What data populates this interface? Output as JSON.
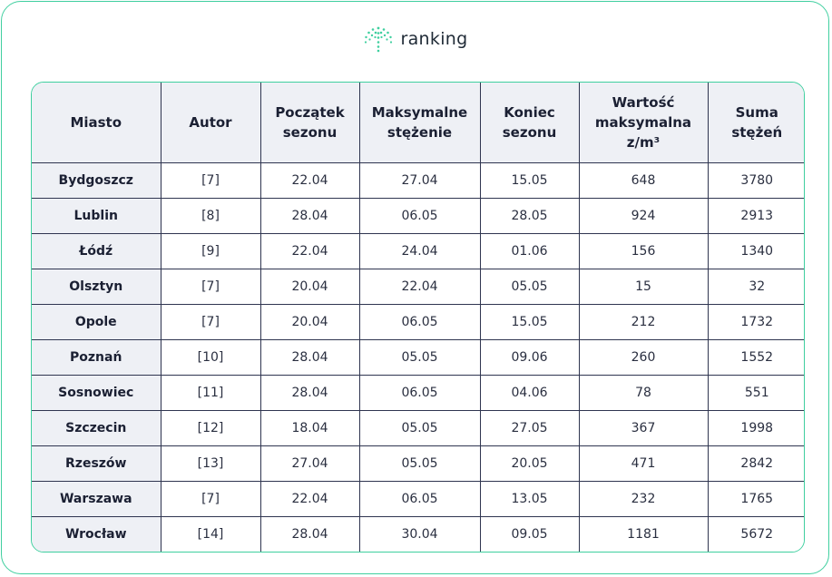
{
  "brand": {
    "name": "ranking",
    "accent_color": "#3fcf9f",
    "icon": "ranking-logo-icon"
  },
  "table": {
    "headers": [
      "Miasto",
      "Autor",
      "Początek sezonu",
      "Maksymalne stężenie",
      "Koniec sezonu",
      "Wartość maksymalna z/m³",
      "Suma stężeń"
    ],
    "rows": [
      [
        "Bydgoszcz",
        "[7]",
        "22.04",
        "27.04",
        "15.05",
        "648",
        "3780"
      ],
      [
        "Lublin",
        "[8]",
        "28.04",
        "06.05",
        "28.05",
        "924",
        "2913"
      ],
      [
        "Łódź",
        "[9]",
        "22.04",
        "24.04",
        "01.06",
        "156",
        "1340"
      ],
      [
        "Olsztyn",
        "[7]",
        "20.04",
        "22.04",
        "05.05",
        "15",
        "32"
      ],
      [
        "Opole",
        "[7]",
        "20.04",
        "06.05",
        "15.05",
        "212",
        "1732"
      ],
      [
        "Poznań",
        "[10]",
        "28.04",
        "05.05",
        "09.06",
        "260",
        "1552"
      ],
      [
        "Sosnowiec",
        "[11]",
        "28.04",
        "06.05",
        "04.06",
        "78",
        "551"
      ],
      [
        "Szczecin",
        "[12]",
        "18.04",
        "05.05",
        "27.05",
        "367",
        "1998"
      ],
      [
        "Rzeszów",
        "[13]",
        "27.04",
        "05.05",
        "20.05",
        "471",
        "2842"
      ],
      [
        "Warszawa",
        "[7]",
        "22.04",
        "06.05",
        "13.05",
        "232",
        "1765"
      ],
      [
        "Wrocław",
        "[14]",
        "28.04",
        "30.04",
        "09.05",
        "1181",
        "5672"
      ]
    ]
  }
}
